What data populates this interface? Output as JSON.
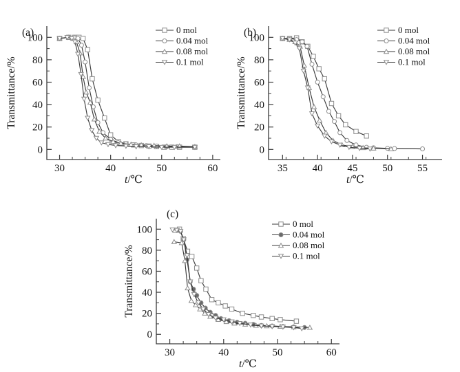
{
  "figure": {
    "background": "#ffffff",
    "line_color": "#3a3a3a",
    "marker_stroke": "#8c8c8c",
    "marker_fill_open": "#ffffff",
    "marker_fill_solid": "#6a6a6a",
    "text_color": "#141414"
  },
  "chart_data": [
    {
      "type": "line",
      "panel_label": "(a)",
      "xlabel": "t/℃",
      "ylabel": "Transmittance/%",
      "xlim": [
        27.5,
        61.5
      ],
      "ylim": [
        0,
        100
      ],
      "xticks": [
        30,
        40,
        50,
        60
      ],
      "x_minor_step": 2.5,
      "yticks": [
        0,
        20,
        40,
        60,
        80,
        100
      ],
      "y_minor_step": 10,
      "legend_position": "top-right",
      "series": [
        {
          "name": "0 mol",
          "marker": "square",
          "filled": false,
          "points": [
            [
              30,
              99
            ],
            [
              31.8,
              100
            ],
            [
              33,
              100
            ],
            [
              33.8,
              100
            ],
            [
              34.6,
              99
            ],
            [
              35.5,
              89
            ],
            [
              36.4,
              63
            ],
            [
              37.5,
              44
            ],
            [
              38.8,
              28
            ],
            [
              40,
              13
            ],
            [
              41.5,
              7
            ],
            [
              43,
              5
            ],
            [
              44.5,
              4
            ],
            [
              46,
              3.5
            ],
            [
              47.5,
              3
            ],
            [
              49,
              2.5
            ],
            [
              50.5,
              2
            ],
            [
              52,
              2
            ],
            [
              53.5,
              2
            ],
            [
              56.5,
              2
            ]
          ]
        },
        {
          "name": "0.04 mol",
          "marker": "circle",
          "filled": false,
          "points": [
            [
              30,
              99
            ],
            [
              31.8,
              100
            ],
            [
              32.8,
              100
            ],
            [
              33.6,
              99
            ],
            [
              34.3,
              93
            ],
            [
              35,
              78
            ],
            [
              35.8,
              55
            ],
            [
              36.6,
              38
            ],
            [
              37.5,
              24
            ],
            [
              38.5,
              15
            ],
            [
              40,
              9
            ],
            [
              41.5,
              6
            ],
            [
              43,
              5
            ],
            [
              45,
              4
            ],
            [
              47,
              3.5
            ],
            [
              49,
              3
            ],
            [
              51,
              2.5
            ],
            [
              53,
              2.5
            ],
            [
              56.5,
              2
            ]
          ]
        },
        {
          "name": "0.08 mol",
          "marker": "triangle-up",
          "filled": false,
          "points": [
            [
              30,
              99
            ],
            [
              31.8,
              100
            ],
            [
              32.6,
              99
            ],
            [
              33.3,
              96
            ],
            [
              34,
              86
            ],
            [
              34.6,
              65
            ],
            [
              35.2,
              51
            ],
            [
              36,
              42
            ],
            [
              36.8,
              27
            ],
            [
              37.8,
              16
            ],
            [
              39,
              10
            ],
            [
              40.5,
              7
            ],
            [
              42,
              5.5
            ],
            [
              44,
              4.5
            ],
            [
              46,
              4
            ],
            [
              48.5,
              3.5
            ],
            [
              51,
              3
            ],
            [
              53.5,
              3
            ],
            [
              56.5,
              2.5
            ]
          ]
        },
        {
          "name": "0.1 mol",
          "marker": "triangle-down",
          "filled": false,
          "points": [
            [
              30,
              99
            ],
            [
              31.5,
              100
            ],
            [
              32.4,
              99
            ],
            [
              33,
              96
            ],
            [
              33.6,
              85
            ],
            [
              34.2,
              67
            ],
            [
              34.8,
              45
            ],
            [
              35.5,
              28
            ],
            [
              36.3,
              17
            ],
            [
              37.2,
              10
            ],
            [
              38.2,
              6
            ],
            [
              39.5,
              4.5
            ],
            [
              41,
              3.5
            ],
            [
              43,
              3
            ],
            [
              45,
              2.5
            ],
            [
              47.5,
              2.5
            ],
            [
              50,
              2
            ],
            [
              52.5,
              2
            ],
            [
              56.5,
              2
            ]
          ]
        }
      ]
    },
    {
      "type": "line",
      "panel_label": "(b)",
      "xlabel": "t/℃",
      "ylabel": "Transmittance/%",
      "xlim": [
        33,
        57.8
      ],
      "ylim": [
        0,
        100
      ],
      "xticks": [
        35,
        40,
        45,
        50,
        55
      ],
      "x_minor_step": 2.5,
      "yticks": [
        0,
        20,
        40,
        60,
        80,
        100
      ],
      "y_minor_step": 10,
      "legend_position": "top-right",
      "series": [
        {
          "name": "0 mol",
          "marker": "square",
          "filled": false,
          "points": [
            [
              35,
              99
            ],
            [
              36,
              99
            ],
            [
              37,
              99.5
            ],
            [
              37.8,
              96
            ],
            [
              38.6,
              92
            ],
            [
              39.4,
              83
            ],
            [
              40.2,
              72
            ],
            [
              41,
              63
            ],
            [
              42,
              41
            ],
            [
              43,
              30
            ],
            [
              44,
              22
            ],
            [
              45.5,
              16
            ],
            [
              47,
              12
            ]
          ]
        },
        {
          "name": "0.04 mol",
          "marker": "circle",
          "filled": false,
          "points": [
            [
              35,
              99
            ],
            [
              36,
              99
            ],
            [
              37,
              98
            ],
            [
              37.8,
              96
            ],
            [
              38.5,
              92
            ],
            [
              39.2,
              76
            ],
            [
              40,
              60
            ],
            [
              40.8,
              47
            ],
            [
              41.6,
              34
            ],
            [
              42.4,
              25
            ],
            [
              43.2,
              15
            ],
            [
              44.2,
              8
            ],
            [
              45.5,
              4
            ],
            [
              47,
              2
            ],
            [
              48,
              1.5
            ],
            [
              50,
              1
            ],
            [
              51,
              0.8
            ],
            [
              55,
              0.5
            ]
          ]
        },
        {
          "name": "0.08 mol",
          "marker": "triangle-up",
          "filled": false,
          "points": [
            [
              35,
              99
            ],
            [
              36,
              98
            ],
            [
              36.8,
              96
            ],
            [
              37.5,
              92
            ],
            [
              38.1,
              75
            ],
            [
              38.8,
              55
            ],
            [
              39.5,
              38
            ],
            [
              40.3,
              26
            ],
            [
              41.2,
              15
            ],
            [
              42.2,
              8
            ],
            [
              43.5,
              4
            ],
            [
              45,
              2.5
            ],
            [
              46.5,
              1.5
            ],
            [
              48,
              1
            ],
            [
              50.5,
              0.5
            ]
          ]
        },
        {
          "name": "0.1 mol",
          "marker": "triangle-down",
          "filled": false,
          "points": [
            [
              35,
              99
            ],
            [
              36,
              98
            ],
            [
              36.8,
              95
            ],
            [
              37.4,
              90
            ],
            [
              38,
              70
            ],
            [
              38.6,
              55
            ],
            [
              39.2,
              32
            ],
            [
              40,
              21
            ],
            [
              41,
              12
            ],
            [
              42,
              7
            ],
            [
              43.2,
              4
            ],
            [
              44.5,
              2
            ],
            [
              46,
              1
            ],
            [
              47.5,
              0.5
            ]
          ]
        }
      ]
    },
    {
      "type": "line",
      "panel_label": "(c)",
      "xlabel": "t/℃",
      "ylabel": "Transmittance/%",
      "xlim": [
        27.5,
        61.5
      ],
      "ylim": [
        0,
        100
      ],
      "xticks": [
        30,
        40,
        50,
        60
      ],
      "x_minor_step": 2.5,
      "yticks": [
        0,
        20,
        40,
        60,
        80,
        100
      ],
      "y_minor_step": 10,
      "legend_position": "top-right",
      "series": [
        {
          "name": "0 mol",
          "marker": "square",
          "filled": false,
          "points": [
            [
              31,
              99
            ],
            [
              31.8,
              100
            ],
            [
              32.5,
              91
            ],
            [
              33.3,
              79
            ],
            [
              34.1,
              74
            ],
            [
              35,
              63
            ],
            [
              35.8,
              51
            ],
            [
              36.7,
              43
            ],
            [
              37.8,
              33
            ],
            [
              39,
              30
            ],
            [
              40.3,
              27
            ],
            [
              41.5,
              24
            ],
            [
              43.5,
              20
            ],
            [
              45.5,
              18
            ],
            [
              47,
              16.5
            ],
            [
              49,
              15
            ],
            [
              50.5,
              14
            ],
            [
              53.5,
              12.5
            ]
          ]
        },
        {
          "name": "0.04 mol",
          "marker": "circle",
          "filled": true,
          "points": [
            [
              31.5,
              99
            ],
            [
              32,
              98
            ],
            [
              32.6,
              90
            ],
            [
              33.2,
              71
            ],
            [
              33.8,
              50
            ],
            [
              34.4,
              43
            ],
            [
              35,
              37
            ],
            [
              35.8,
              30
            ],
            [
              36.6,
              25
            ],
            [
              37.5,
              21
            ],
            [
              38.5,
              18
            ],
            [
              39.5,
              15
            ],
            [
              41,
              13
            ],
            [
              42.5,
              11.5
            ],
            [
              44,
              10.5
            ],
            [
              45.5,
              9.5
            ],
            [
              47,
              8.5
            ],
            [
              49,
              8
            ],
            [
              51,
              7.5
            ],
            [
              53,
              7
            ],
            [
              55,
              6.5
            ]
          ]
        },
        {
          "name": "0.08 mol",
          "marker": "triangle-up",
          "filled": false,
          "points": [
            [
              30.8,
              88
            ],
            [
              32.2,
              87
            ],
            [
              32.8,
              70
            ],
            [
              33.3,
              44
            ],
            [
              34,
              32
            ],
            [
              34.8,
              28
            ],
            [
              35.6,
              24
            ],
            [
              36.5,
              20
            ],
            [
              37.5,
              17
            ],
            [
              39,
              14
            ],
            [
              40.5,
              12
            ],
            [
              42,
              10.5
            ],
            [
              44,
              9.5
            ],
            [
              46,
              8.5
            ],
            [
              48,
              8
            ],
            [
              50.5,
              7.5
            ],
            [
              53,
              7
            ],
            [
              56,
              6.5
            ]
          ]
        },
        {
          "name": "0.1 mol",
          "marker": "triangle-down",
          "filled": false,
          "points": [
            [
              30.5,
              99.5
            ],
            [
              31.3,
              99
            ],
            [
              32,
              98
            ],
            [
              32.6,
              90
            ],
            [
              33.2,
              75
            ],
            [
              33.8,
              50
            ],
            [
              34.5,
              38
            ],
            [
              35.3,
              30
            ],
            [
              36.2,
              24
            ],
            [
              37.2,
              19
            ],
            [
              38.5,
              15.5
            ],
            [
              40,
              14
            ],
            [
              41.5,
              12
            ],
            [
              43,
              10.5
            ],
            [
              45,
              9
            ],
            [
              47,
              8
            ],
            [
              49,
              7.5
            ],
            [
              51,
              7
            ],
            [
              53,
              6.5
            ],
            [
              54.5,
              5.5
            ]
          ]
        }
      ]
    }
  ]
}
